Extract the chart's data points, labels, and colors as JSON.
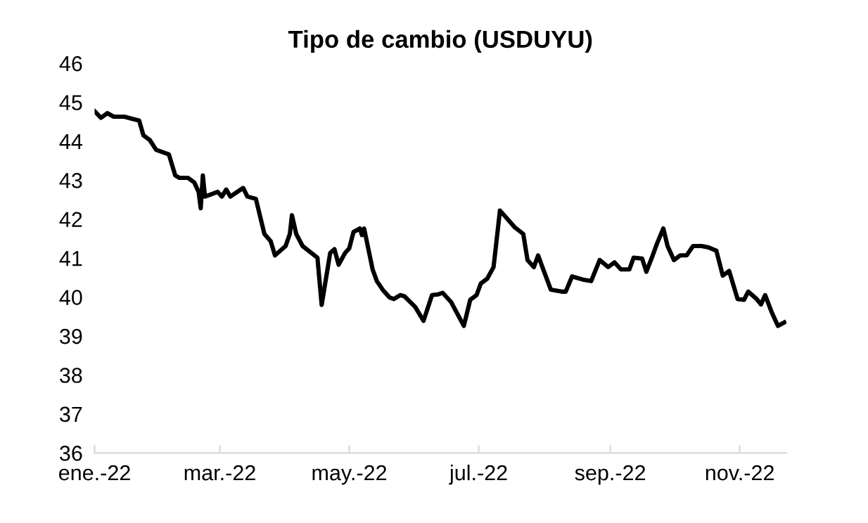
{
  "chart_data": {
    "type": "line",
    "title": "Tipo de cambio (USDUYU)",
    "x": [
      "2022-01-01",
      "2022-01-04",
      "2022-01-07",
      "2022-01-10",
      "2022-01-15",
      "2022-01-19",
      "2022-01-22",
      "2022-01-24",
      "2022-01-27",
      "2022-01-30",
      "2022-02-05",
      "2022-02-08",
      "2022-02-10",
      "2022-02-14",
      "2022-02-17",
      "2022-02-19",
      "2022-02-20",
      "2022-02-21",
      "2022-02-22",
      "2022-02-25",
      "2022-02-28",
      "2022-03-02",
      "2022-03-04",
      "2022-03-06",
      "2022-03-12",
      "2022-03-14",
      "2022-03-18",
      "2022-03-22",
      "2022-03-25",
      "2022-03-27",
      "2022-04-01",
      "2022-04-03",
      "2022-04-04",
      "2022-04-06",
      "2022-04-09",
      "2022-04-16",
      "2022-04-18",
      "2022-04-22",
      "2022-04-24",
      "2022-04-26",
      "2022-04-29",
      "2022-05-01",
      "2022-05-03",
      "2022-05-06",
      "2022-05-07",
      "2022-05-08",
      "2022-05-12",
      "2022-05-14",
      "2022-05-17",
      "2022-05-20",
      "2022-05-22",
      "2022-05-25",
      "2022-05-27",
      "2022-06-01",
      "2022-06-05",
      "2022-06-09",
      "2022-06-12",
      "2022-06-14",
      "2022-06-18",
      "2022-06-24",
      "2022-06-27",
      "2022-06-30",
      "2022-07-02",
      "2022-07-05",
      "2022-07-08",
      "2022-07-09",
      "2022-07-11",
      "2022-07-13",
      "2022-07-18",
      "2022-07-22",
      "2022-07-24",
      "2022-07-27",
      "2022-07-29",
      "2022-07-31",
      "2022-08-04",
      "2022-08-09",
      "2022-08-11",
      "2022-08-14",
      "2022-08-19",
      "2022-08-23",
      "2022-08-27",
      "2022-08-31",
      "2022-09-03",
      "2022-09-06",
      "2022-09-10",
      "2022-09-12",
      "2022-09-16",
      "2022-09-18",
      "2022-09-21",
      "2022-09-23",
      "2022-09-26",
      "2022-09-28",
      "2022-10-01",
      "2022-10-04",
      "2022-10-07",
      "2022-10-10",
      "2022-10-14",
      "2022-10-17",
      "2022-10-21",
      "2022-10-24",
      "2022-10-27",
      "2022-10-31",
      "2022-11-03",
      "2022-11-05",
      "2022-11-09",
      "2022-11-11",
      "2022-11-13",
      "2022-11-16",
      "2022-11-19",
      "2022-11-22"
    ],
    "series": [
      {
        "color": "#000000",
        "values": [
          44.77,
          44.6,
          44.72,
          44.63,
          44.63,
          44.57,
          44.53,
          44.15,
          44.03,
          43.78,
          43.66,
          43.12,
          43.06,
          43.06,
          42.94,
          42.7,
          42.28,
          43.12,
          42.58,
          42.64,
          42.7,
          42.58,
          42.76,
          42.58,
          42.8,
          42.58,
          42.52,
          41.62,
          41.43,
          41.07,
          41.31,
          41.62,
          42.1,
          41.62,
          41.31,
          41.01,
          39.8,
          41.13,
          41.23,
          40.83,
          41.13,
          41.25,
          41.67,
          41.76,
          41.59,
          41.76,
          40.71,
          40.41,
          40.17,
          39.99,
          39.95,
          40.05,
          40.02,
          39.75,
          39.39,
          40.05,
          40.07,
          40.11,
          39.87,
          39.26,
          39.93,
          40.05,
          40.35,
          40.47,
          40.77,
          41.25,
          42.22,
          42.1,
          41.79,
          41.62,
          40.95,
          40.77,
          41.07,
          40.77,
          40.19,
          40.14,
          40.14,
          40.53,
          40.45,
          40.41,
          40.95,
          40.77,
          40.89,
          40.71,
          40.71,
          41.01,
          40.99,
          40.65,
          41.07,
          41.37,
          41.76,
          41.31,
          40.95,
          41.07,
          41.07,
          41.31,
          41.31,
          41.28,
          41.19,
          40.55,
          40.67,
          39.95,
          39.93,
          40.14,
          39.95,
          39.81,
          40.05,
          39.62,
          39.26,
          39.35
        ]
      }
    ],
    "xlim": [
      "2022-01-01",
      "2022-11-23"
    ],
    "xticks": [
      {
        "value": "2022-01-01",
        "label": "ene.-22"
      },
      {
        "value": "2022-03-01",
        "label": "mar.-22"
      },
      {
        "value": "2022-05-01",
        "label": "may.-22"
      },
      {
        "value": "2022-07-01",
        "label": "jul.-22"
      },
      {
        "value": "2022-09-01",
        "label": "sep.-22"
      },
      {
        "value": "2022-11-01",
        "label": "nov.-22"
      }
    ],
    "ylim": [
      36,
      46
    ],
    "yticks": [
      36,
      37,
      38,
      39,
      40,
      41,
      42,
      43,
      44,
      45,
      46
    ],
    "marker": "none",
    "line_style": "solid"
  }
}
